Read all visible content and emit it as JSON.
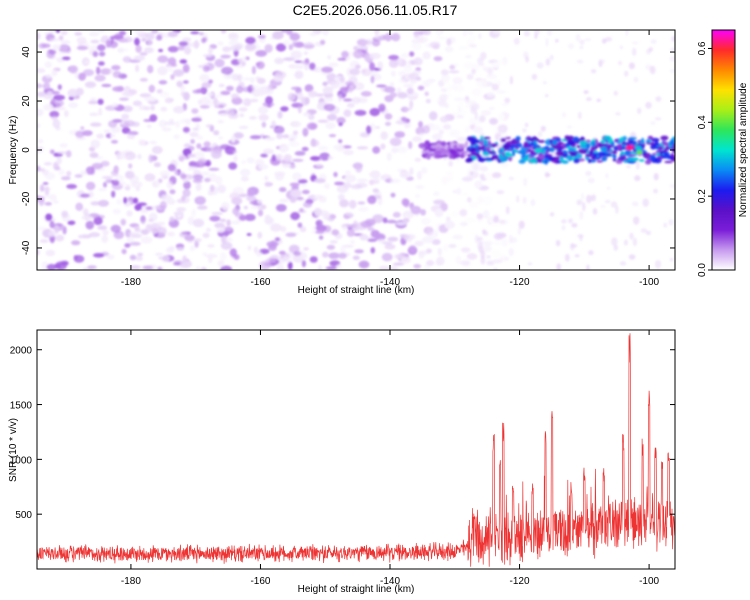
{
  "figure_title": "C2E5.2026.056.11.05.R17",
  "chart_data": [
    {
      "type": "heatmap",
      "title": "C2E5.2026.056.11.05.R17",
      "xlabel": "Height of straight line (km)",
      "ylabel": "Frequency (Hz)",
      "xlim": [
        -194.5,
        -96
      ],
      "ylim": [
        -49,
        49
      ],
      "xticks": [
        -180,
        -160,
        -140,
        -120,
        -100
      ],
      "yticks": [
        -40,
        -20,
        0,
        20,
        40
      ],
      "colorbar": {
        "label": "Normalized spectral amplitude",
        "range": [
          0.0,
          0.65
        ],
        "ticks": [
          0.0,
          0.2,
          0.4,
          0.6
        ],
        "colormap": [
          "#ffffff",
          "#c79bef",
          "#7a1dd8",
          "#5a10c8",
          "#1c1cf0",
          "#0a8cf5",
          "#00e5d0",
          "#2ee65a",
          "#aaef17",
          "#ffe100",
          "#ff8800",
          "#ff2a2a",
          "#ff00ff"
        ]
      },
      "features": [
        {
          "name": "broadband noise",
          "x_range": [
            -194.5,
            -128
          ],
          "y_range": [
            -49,
            49
          ],
          "typical_amplitude": 0.05
        },
        {
          "name": "signal band near 0 Hz",
          "x_range": [
            -135,
            -96
          ],
          "y_center": 0,
          "half_width_hz": 5,
          "typical_amplitude": 0.2,
          "peak_amplitude": 0.62,
          "peak_x": -103
        }
      ]
    },
    {
      "type": "line",
      "xlabel": "Height of straight line (km)",
      "ylabel": "SNR (10 * v/v)",
      "xlim": [
        -194.5,
        -96
      ],
      "ylim": [
        0,
        2180
      ],
      "xticks": [
        -180,
        -160,
        -140,
        -120,
        -100
      ],
      "yticks": [
        500,
        1000,
        1500,
        2000
      ],
      "series": [
        {
          "name": "SNR",
          "color": "#ee3333",
          "baseline_x": [
            -194.5,
            -180,
            -160,
            -140,
            -130,
            -128
          ],
          "baseline_values": [
            140,
            140,
            140,
            150,
            160,
            200
          ],
          "noise_spread": 120,
          "peaks_x": [
            -127,
            -124,
            -123,
            -122.5,
            -121,
            -118,
            -116,
            -115,
            -112,
            -110,
            -107,
            -104,
            -103,
            -101,
            -100,
            -99,
            -98,
            -97
          ],
          "peaks_values": [
            530,
            1260,
            1000,
            1340,
            800,
            800,
            1280,
            1480,
            800,
            930,
            920,
            1270,
            2170,
            1190,
            1650,
            1190,
            1050,
            1100
          ]
        }
      ]
    }
  ]
}
